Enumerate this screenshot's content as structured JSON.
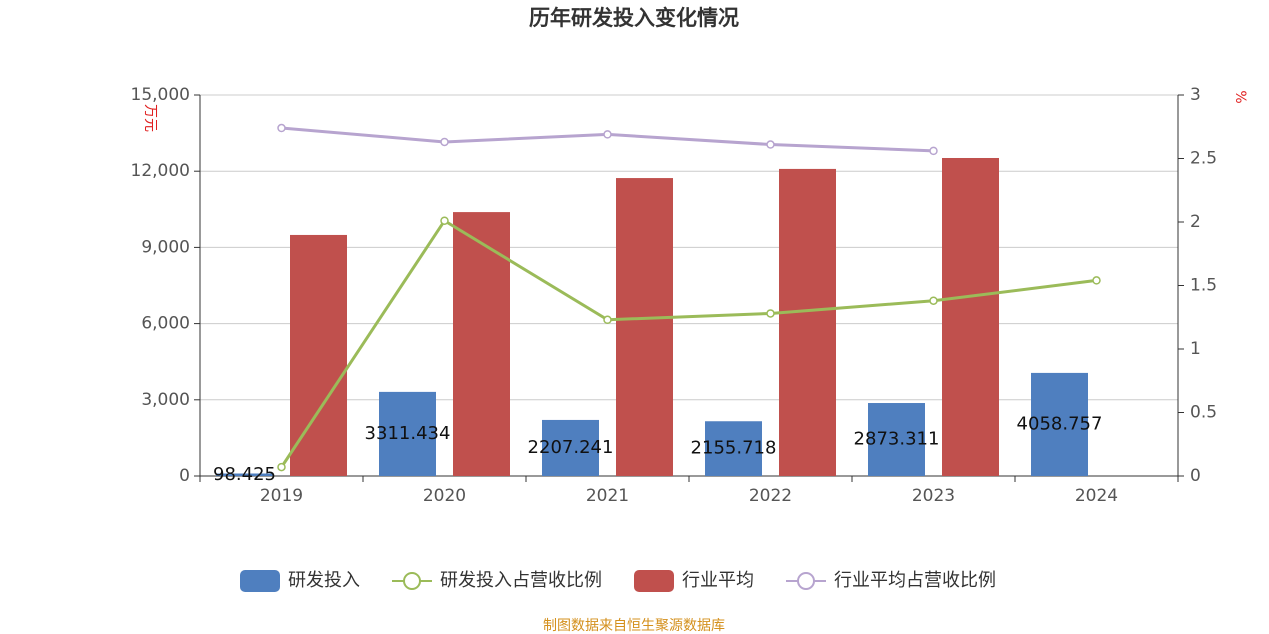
{
  "chart_data": {
    "type": "bar-line",
    "title": "历年研发投入变化情况",
    "y_label": "万元",
    "y2_label": "%",
    "source": "制图数据来自恒生聚源数据库",
    "categories": [
      "2019",
      "2020",
      "2021",
      "2022",
      "2023",
      "2024"
    ],
    "series": [
      {
        "name": "研发投入",
        "type": "bar",
        "color": "#4f7fbf",
        "values": [
          98.425,
          3311.434,
          2207.241,
          2155.718,
          2873.311,
          4058.757
        ]
      },
      {
        "name": "研发投入占营收比例",
        "type": "line",
        "axis": "y2",
        "color": "#9bbb59",
        "values": [
          0.07,
          2.01,
          1.23,
          1.28,
          1.38,
          1.54
        ]
      },
      {
        "name": "行业平均",
        "type": "bar",
        "color": "#c0504d",
        "values": [
          9490,
          10390,
          11730,
          12090,
          12520,
          null
        ]
      },
      {
        "name": "行业平均占营收比例",
        "type": "line",
        "axis": "y2",
        "color": "#b7a4cf",
        "values": [
          2.74,
          2.63,
          2.69,
          2.61,
          2.56,
          null
        ]
      }
    ],
    "ylim": [
      0,
      15000
    ],
    "yticks": [
      0,
      {
        "value": 3000,
        "label": "3,000"
      },
      {
        "value": 6000,
        "label": "6,000"
      },
      {
        "value": 9000,
        "label": "9,000"
      },
      {
        "value": 12000,
        "label": "12,000"
      },
      {
        "value": 15000,
        "label": "15,000"
      }
    ],
    "y2lim": [
      0,
      3
    ],
    "y2ticks": [
      0,
      0.5,
      1,
      1.5,
      2,
      2.5,
      3
    ],
    "grid": true
  }
}
